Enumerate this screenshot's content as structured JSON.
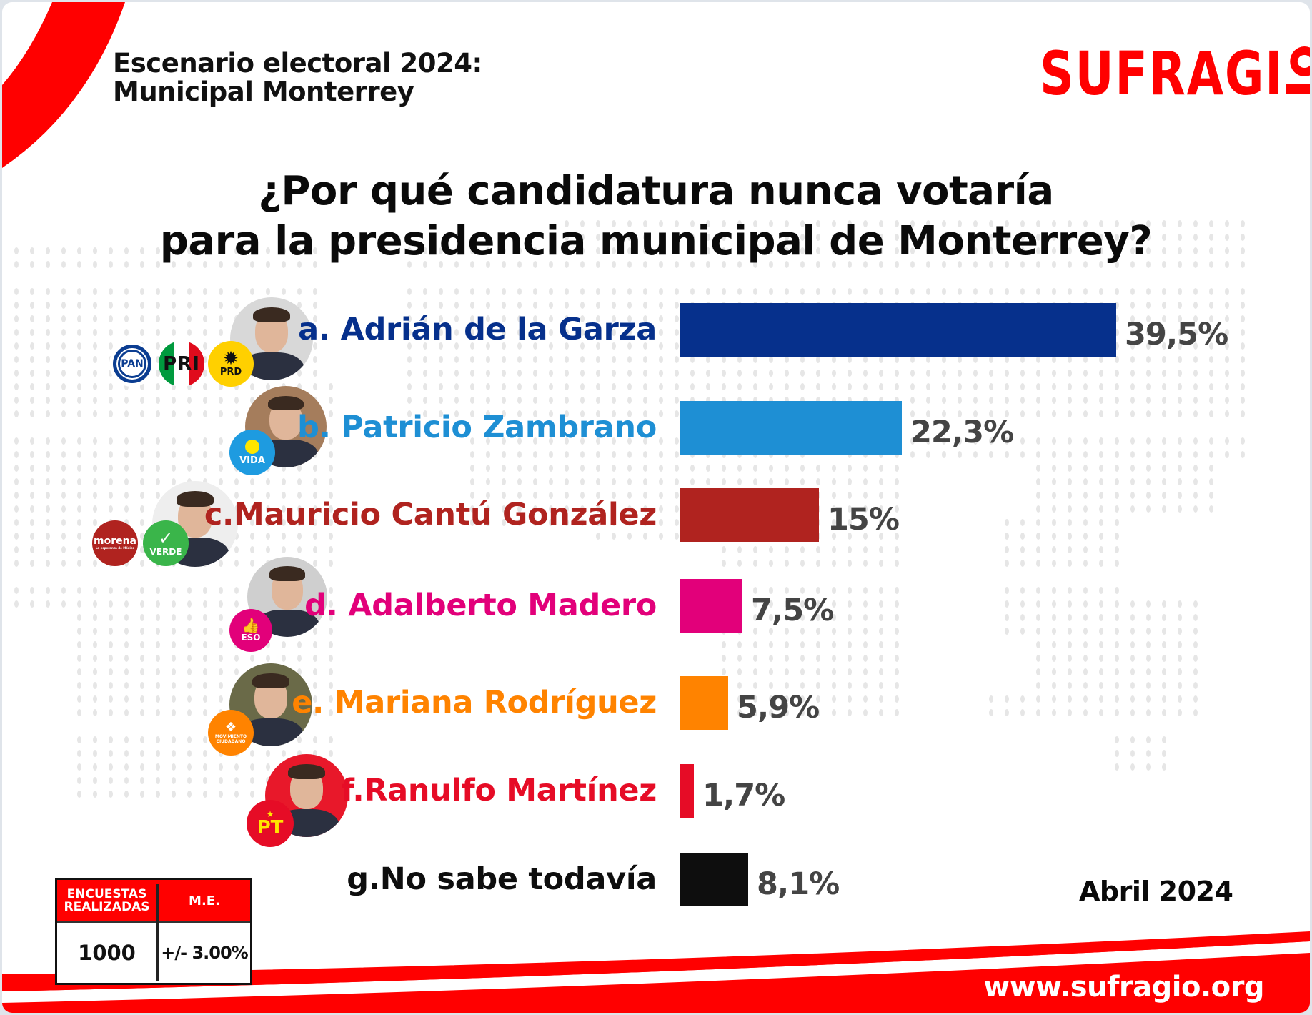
{
  "header": {
    "title_line1": "Escenario electoral 2024:",
    "title_line2": "Municipal Monterrey"
  },
  "brand": {
    "logo_text": "SUFRAGIO",
    "url": "www.sufragio.org",
    "color": "#ff0000"
  },
  "date": "Abril 2024",
  "survey": {
    "col1_header_line1": "ENCUESTAS",
    "col1_header_line2": "REALIZADAS",
    "col2_header": "M.E.",
    "col1_value": "1000",
    "col2_value": "+/- 3.00%"
  },
  "candidates": [
    {
      "label": "a. Adrián de la Garza",
      "color": "#06308c",
      "parties": [
        "PAN",
        "PRI",
        "PRD"
      ]
    },
    {
      "label": "b. Patricio Zambrano",
      "color": "#1e8fd4",
      "parties": [
        "VIDA"
      ]
    },
    {
      "label": "c.Mauricio Cantú González",
      "color": "#b0231f",
      "parties": [
        "morena",
        "VERDE"
      ],
      "party_taglines": [
        "La esperanza de México"
      ]
    },
    {
      "label": "d. Adalberto Madero",
      "color": "#e2007a",
      "parties": [
        "ESO"
      ]
    },
    {
      "label": "e. Mariana Rodríguez",
      "color": "#ff8300",
      "parties": [
        "MOVIMIENTO CIUDADANO"
      ]
    },
    {
      "label": "f.Ranulfo Martínez",
      "color": "#e60c26",
      "parties": [
        "PT"
      ]
    },
    {
      "label": "g.No sabe todavía",
      "color": "#0e0e0e",
      "parties": []
    }
  ],
  "chart_data": {
    "type": "bar",
    "orientation": "horizontal",
    "title": "¿Por qué candidatura nunca votaría para la presidencia municipal de Monterrey?",
    "title_line1": "¿Por qué candidatura nunca votaría",
    "title_line2": "para la presidencia municipal de Monterrey?",
    "categories": [
      "a. Adrián de la Garza",
      "b. Patricio Zambrano",
      "c.Mauricio Cantú González",
      "d. Adalberto Madero",
      "e. Mariana Rodríguez",
      "f.Ranulfo Martínez",
      "g.No sabe todavía"
    ],
    "values": [
      39.5,
      22.3,
      15,
      7.5,
      5.9,
      1.7,
      8.1
    ],
    "value_labels": [
      "39,5%",
      "22,3%",
      "15%",
      "7,5%",
      "5,9%",
      "1,7%",
      "8,1%"
    ],
    "unit": "%",
    "xlabel": "",
    "ylabel": "",
    "grid": false,
    "legend": "none"
  }
}
